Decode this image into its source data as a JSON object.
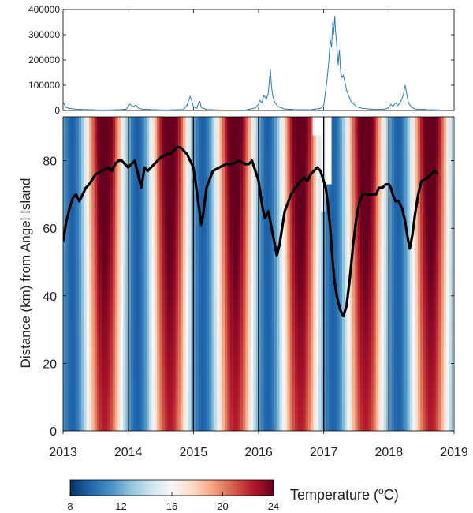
{
  "chart_data": [
    {
      "type": "line",
      "panel": "top",
      "ylim": [
        0,
        400000
      ],
      "yticks": [
        0,
        100000,
        200000,
        300000,
        400000
      ],
      "ytick_labels": [
        "0",
        "100000",
        "200000",
        "300000",
        "400000"
      ],
      "xlim": [
        2013,
        2019
      ],
      "color": "#2b7bb9",
      "series": [
        {
          "x": [
            2013.0,
            2013.02,
            2013.05,
            2013.1,
            2013.2,
            2013.4,
            2013.6,
            2013.85,
            2013.97,
            2014.0,
            2014.03,
            2014.07,
            2014.12,
            2014.15,
            2014.2,
            2014.4,
            2014.6,
            2014.85,
            2014.9,
            2014.95,
            2014.97,
            2015.0,
            2015.05,
            2015.08,
            2015.1,
            2015.12,
            2015.2,
            2015.4,
            2015.6,
            2015.8,
            2015.95,
            2016.0,
            2016.02,
            2016.05,
            2016.08,
            2016.12,
            2016.15,
            2016.18,
            2016.2,
            2016.22,
            2016.25,
            2016.3,
            2016.4,
            2016.6,
            2016.8,
            2016.95,
            2017.0,
            2017.02,
            2017.05,
            2017.08,
            2017.1,
            2017.12,
            2017.14,
            2017.15,
            2017.17,
            2017.18,
            2017.2,
            2017.22,
            2017.24,
            2017.26,
            2017.28,
            2017.3,
            2017.32,
            2017.35,
            2017.38,
            2017.42,
            2017.46,
            2017.5,
            2017.6,
            2017.8,
            2017.95,
            2018.0,
            2018.03,
            2018.06,
            2018.1,
            2018.14,
            2018.18,
            2018.22,
            2018.25,
            2018.27,
            2018.3,
            2018.35,
            2018.4,
            2018.6,
            2018.8
          ],
          "y": [
            35000,
            22000,
            12000,
            8000,
            5000,
            3000,
            2000,
            3000,
            5000,
            18000,
            25000,
            15000,
            22000,
            10000,
            6000,
            3000,
            2000,
            4000,
            20000,
            55000,
            40000,
            15000,
            8000,
            30000,
            35000,
            12000,
            4000,
            2000,
            1500,
            2000,
            10000,
            25000,
            40000,
            30000,
            60000,
            45000,
            70000,
            165000,
            90000,
            55000,
            30000,
            15000,
            6000,
            3000,
            3000,
            8000,
            20000,
            60000,
            120000,
            200000,
            280000,
            250000,
            350000,
            300000,
            375000,
            320000,
            260000,
            180000,
            240000,
            150000,
            130000,
            140000,
            120000,
            80000,
            60000,
            35000,
            25000,
            15000,
            8000,
            4000,
            6000,
            12000,
            25000,
            15000,
            30000,
            20000,
            35000,
            60000,
            100000,
            70000,
            30000,
            12000,
            6000,
            3000,
            2000
          ]
        }
      ]
    },
    {
      "type": "heatmap",
      "panel": "bottom",
      "ylabel": "Distance (km) from Angel Island",
      "ylim": [
        0,
        93
      ],
      "yticks": [
        0,
        20,
        40,
        60,
        80
      ],
      "ytick_labels": [
        "0",
        "20",
        "40",
        "60",
        "80"
      ],
      "xlim": [
        2013,
        2019
      ],
      "xticks": [
        2013,
        2014,
        2015,
        2016,
        2017,
        2018,
        2019
      ],
      "xtick_labels": [
        "2013",
        "2014",
        "2015",
        "2016",
        "2017",
        "2018",
        "2019"
      ],
      "year_lines": [
        2014,
        2015,
        2016,
        2017,
        2018
      ],
      "temperature_description": "Seasonal cycle: cold (~9-12 C) in winter near year boundaries, warm (~22-24 C) in late summer, warmest upstream (high distance)",
      "missing_data": [
        {
          "x": [
            2016.83,
            2016.96
          ],
          "y": [
            87.5,
            93
          ]
        },
        {
          "x": [
            2016.96,
            2017.02
          ],
          "y": [
            65,
            93
          ]
        },
        {
          "x": [
            2017.02,
            2017.12
          ],
          "y": [
            73,
            93
          ]
        }
      ],
      "line_series": {
        "name": "",
        "x": [
          2013.0,
          2013.05,
          2013.1,
          2013.15,
          2013.2,
          2013.25,
          2013.3,
          2013.35,
          2013.4,
          2013.5,
          2013.6,
          2013.7,
          2013.75,
          2013.8,
          2013.85,
          2013.9,
          2013.95,
          2014.0,
          2014.05,
          2014.1,
          2014.15,
          2014.2,
          2014.25,
          2014.3,
          2014.4,
          2014.5,
          2014.6,
          2014.65,
          2014.7,
          2014.75,
          2014.8,
          2014.85,
          2014.9,
          2014.95,
          2015.0,
          2015.03,
          2015.08,
          2015.12,
          2015.15,
          2015.2,
          2015.3,
          2015.4,
          2015.5,
          2015.6,
          2015.7,
          2015.8,
          2015.85,
          2015.9,
          2015.95,
          2016.0,
          2016.03,
          2016.06,
          2016.1,
          2016.15,
          2016.18,
          2016.22,
          2016.25,
          2016.28,
          2016.32,
          2016.36,
          2016.4,
          2016.5,
          2016.6,
          2016.7,
          2016.75,
          2016.8,
          2016.85,
          2016.9,
          2016.95,
          2017.0,
          2017.03,
          2017.06,
          2017.1,
          2017.13,
          2017.16,
          2017.2,
          2017.25,
          2017.3,
          2017.35,
          2017.4,
          2017.45,
          2017.5,
          2017.55,
          2017.6,
          2017.7,
          2017.8,
          2017.85,
          2017.9,
          2017.95,
          2018.0,
          2018.03,
          2018.06,
          2018.1,
          2018.15,
          2018.2,
          2018.25,
          2018.28,
          2018.32,
          2018.36,
          2018.4,
          2018.45,
          2018.5,
          2018.6,
          2018.7,
          2018.75
        ],
        "y": [
          56,
          62,
          66,
          69,
          70,
          68,
          70,
          72,
          73,
          76,
          77,
          78,
          77,
          79,
          80,
          80,
          79,
          78,
          79,
          80,
          76,
          72,
          78,
          77,
          79,
          81,
          82,
          82,
          83,
          84,
          84,
          83,
          82,
          80,
          78,
          74,
          67,
          61,
          64,
          72,
          77,
          78,
          79,
          79,
          80,
          79,
          79,
          80,
          77,
          74,
          70,
          66,
          63,
          65,
          62,
          58,
          55,
          52,
          55,
          60,
          65,
          70,
          73,
          75,
          74,
          76,
          77,
          78,
          77,
          74,
          72,
          68,
          60,
          52,
          45,
          40,
          36,
          34,
          37,
          45,
          55,
          63,
          68,
          70,
          70,
          70,
          72,
          72,
          73,
          73,
          72,
          70,
          68,
          68,
          66,
          62,
          58,
          54,
          58,
          64,
          70,
          74,
          75,
          77,
          76
        ]
      }
    },
    {
      "type": "colorbar",
      "label": "Temperature (oC)",
      "label_main": "Temperature (",
      "label_sup": "o",
      "label_unit": "C)",
      "range": [
        8,
        24
      ],
      "ticks": [
        8,
        12,
        16,
        20,
        24
      ],
      "tick_labels": [
        "8",
        "12",
        "16",
        "20",
        "24"
      ],
      "colormap": [
        "#063062",
        "#2166ac",
        "#4a91c5",
        "#92c5de",
        "#d1e5f0",
        "#f7f7f7",
        "#fddbc7",
        "#f4a582",
        "#d6604d",
        "#b2182b",
        "#67001f"
      ]
    }
  ]
}
